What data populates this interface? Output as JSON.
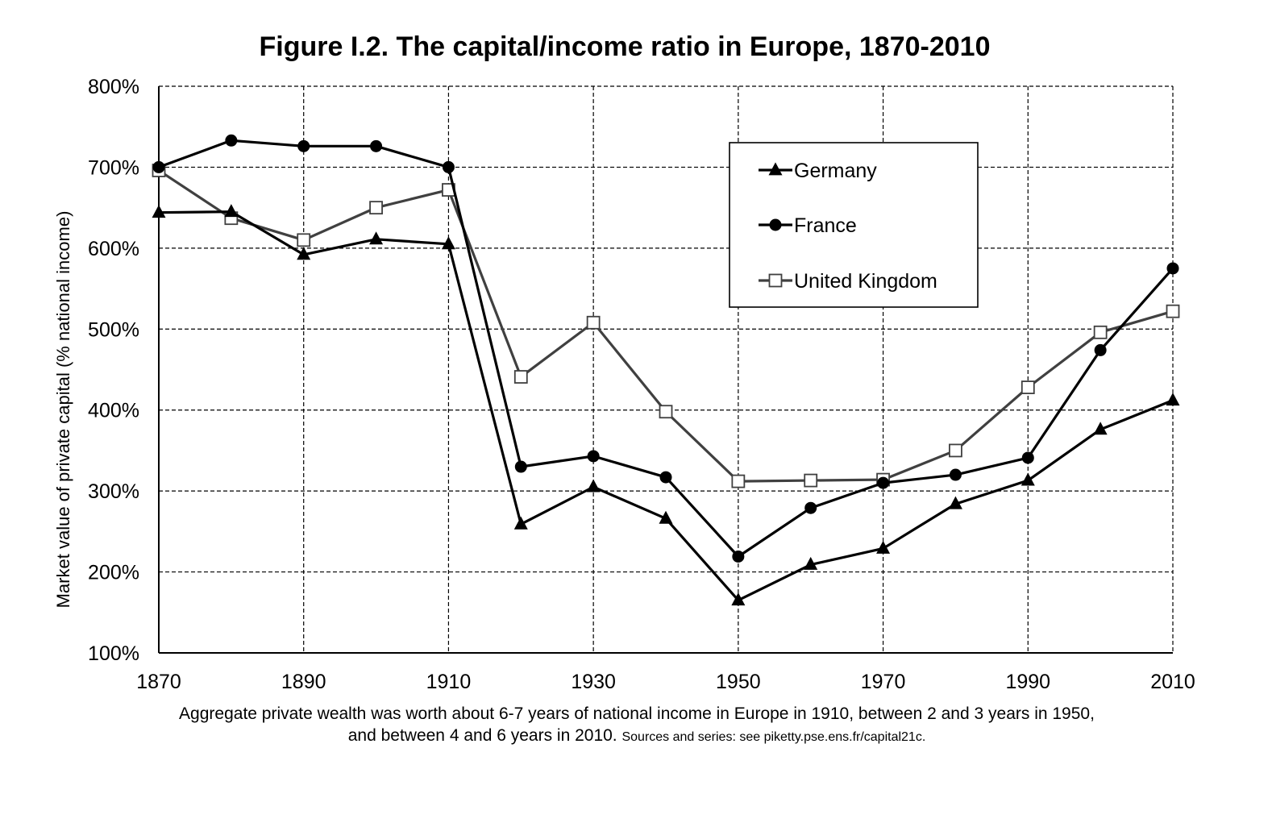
{
  "chart_data": {
    "type": "line",
    "title": "Figure I.2. The capital/income ratio in Europe, 1870-2010",
    "xlabel": "",
    "ylabel": "Market value of private capital (% national income)",
    "x": [
      1870,
      1880,
      1890,
      1900,
      1910,
      1920,
      1930,
      1940,
      1950,
      1960,
      1970,
      1980,
      1990,
      2000,
      2010
    ],
    "xlim": [
      1870,
      2010
    ],
    "ylim": [
      100,
      800
    ],
    "x_ticks": [
      1870,
      1890,
      1910,
      1930,
      1950,
      1970,
      1990,
      2010
    ],
    "x_tick_labels": [
      "1870",
      "1890",
      "1910",
      "1930",
      "1950",
      "1970",
      "1990",
      "2010"
    ],
    "y_ticks": [
      100,
      200,
      300,
      400,
      500,
      600,
      700,
      800
    ],
    "y_tick_labels": [
      "100%",
      "200%",
      "300%",
      "400%",
      "500%",
      "600%",
      "700%",
      "800%"
    ],
    "grid": true,
    "legend_position": "top-right",
    "series": [
      {
        "name": "Germany",
        "marker": "triangle",
        "color": "#000000",
        "values": [
          644,
          645,
          592,
          611,
          605,
          259,
          305,
          266,
          165,
          209,
          229,
          284,
          313,
          376,
          412
        ]
      },
      {
        "name": "France",
        "marker": "circle",
        "color": "#000000",
        "values": [
          700,
          733,
          726,
          726,
          700,
          330,
          343,
          317,
          219,
          279,
          310,
          320,
          341,
          474,
          575
        ]
      },
      {
        "name": "United Kingdom",
        "marker": "square",
        "color": "#404040",
        "values": [
          696,
          637,
          610,
          650,
          672,
          441,
          508,
          398,
          312,
          313,
          314,
          350,
          428,
          496,
          522
        ]
      }
    ]
  },
  "caption": {
    "main": "Aggregate private wealth was worth about 6-7 years of national income in Europe in 1910, between 2 and 3 years in 1950, and between 4 and 6 years in 2010.",
    "sources": "Sources and series: see piketty.pse.ens.fr/capital21c."
  }
}
